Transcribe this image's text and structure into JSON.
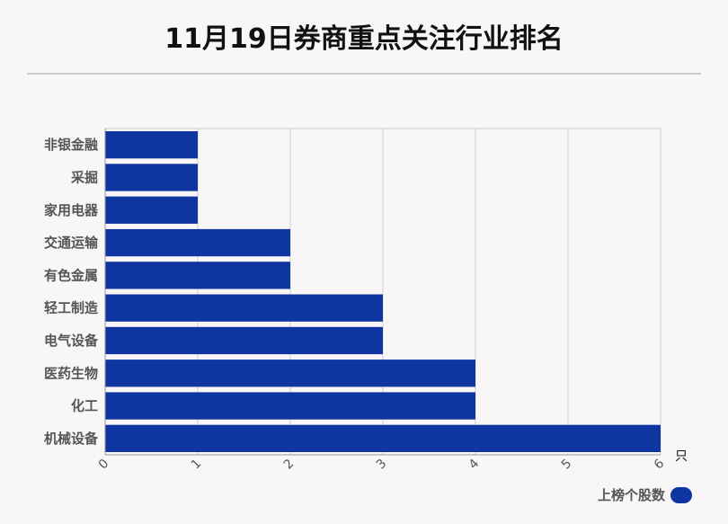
{
  "title": "11月19日券商重点关注行业排名",
  "chart_data": {
    "type": "bar",
    "orientation": "horizontal",
    "categories": [
      "非银金融",
      "采掘",
      "家用电器",
      "交通运输",
      "有色金属",
      "轻工制造",
      "电气设备",
      "医药生物",
      "化工",
      "机械设备"
    ],
    "series": [
      {
        "name": "上榜个股数",
        "values": [
          1,
          1,
          1,
          2,
          2,
          3,
          3,
          4,
          4,
          6
        ]
      }
    ],
    "xlim": [
      0,
      6
    ],
    "xticks": [
      "0",
      "1",
      "2",
      "3",
      "4",
      "5",
      "6"
    ],
    "x_unit": "只",
    "grid": true,
    "legend_position": "bottom-right",
    "bar_color": "#0e35a0"
  },
  "legend": {
    "label": "上榜个股数"
  }
}
